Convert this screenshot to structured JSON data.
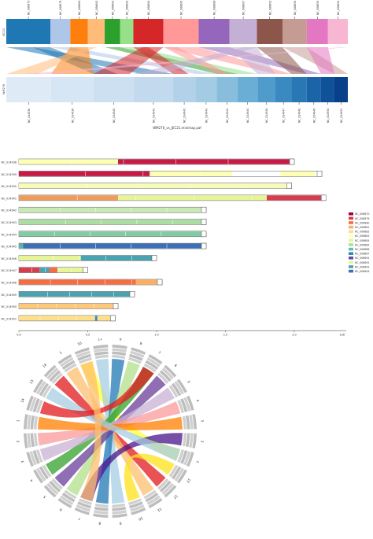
{
  "synteny": {
    "top_label": "JEC21",
    "bottom_label": "WM276",
    "caption": "WM276_vs_JEC21.minimap.paf",
    "top_contigs": [
      {
        "name": "NC_006670",
        "len": 1.0,
        "color": "#1f77b4"
      },
      {
        "name": "NC_006679",
        "len": 0.45,
        "color": "#aec7e8"
      },
      {
        "name": "NC_006680",
        "len": 0.4,
        "color": "#ff7f0e"
      },
      {
        "name": "NC_006681",
        "len": 0.38,
        "color": "#ffbb78"
      },
      {
        "name": "NC_006682",
        "len": 0.35,
        "color": "#2ca02c"
      },
      {
        "name": "NC_006683",
        "len": 0.3,
        "color": "#98df8a"
      },
      {
        "name": "NC_006684",
        "len": 0.68,
        "color": "#d62728"
      },
      {
        "name": "NC_006685",
        "len": 0.8,
        "color": "#ff9896"
      },
      {
        "name": "NC_006686",
        "len": 0.7,
        "color": "#9467bd"
      },
      {
        "name": "NC_006687",
        "len": 0.62,
        "color": "#c5b0d5"
      },
      {
        "name": "NC_006691",
        "len": 0.58,
        "color": "#8c564b"
      },
      {
        "name": "NC_006692",
        "len": 0.55,
        "color": "#c49c94"
      },
      {
        "name": "NC_006693",
        "len": 0.48,
        "color": "#e377c2"
      },
      {
        "name": "NC_006694",
        "len": 0.45,
        "color": "#f7b6d2"
      }
    ],
    "bottom_contigs": [
      {
        "name": "NC_014938",
        "len": 1.0,
        "color": "#deebf7"
      },
      {
        "name": "NC_014939",
        "len": 0.95,
        "color": "#d6e6f4"
      },
      {
        "name": "NC_014940",
        "len": 0.9,
        "color": "#cde0f1"
      },
      {
        "name": "NC_014941",
        "len": 0.88,
        "color": "#c2d9ee"
      },
      {
        "name": "NC_014942",
        "len": 0.5,
        "color": "#b3d2e9"
      },
      {
        "name": "NC_014943",
        "len": 0.48,
        "color": "#a3cbe4"
      },
      {
        "name": "NC_014944",
        "len": 0.46,
        "color": "#88bedc"
      },
      {
        "name": "NC_014945",
        "len": 0.45,
        "color": "#6aaed6"
      },
      {
        "name": "NC_014946",
        "len": 0.4,
        "color": "#4f9bcb"
      },
      {
        "name": "NC_014947",
        "len": 0.36,
        "color": "#3a89c1"
      },
      {
        "name": "NC_014948",
        "len": 0.34,
        "color": "#2a77b6"
      },
      {
        "name": "NC_014949",
        "len": 0.32,
        "color": "#1c64a8"
      },
      {
        "name": "NC_014950",
        "len": 0.3,
        "color": "#0f5299"
      },
      {
        "name": "NC_014951",
        "len": 0.3,
        "color": "#08408a"
      }
    ]
  },
  "painting": {
    "axis_unit": "1e6",
    "x_ticks": [
      "0.0",
      "0.5",
      "1.0",
      "1.5",
      "2.0"
    ],
    "x_max": 2.3,
    "rows": [
      {
        "name": "NC_014938",
        "len": 2.0,
        "segments": [
          [
            0,
            0.72,
            "#ffffb3"
          ],
          [
            0.72,
            2.0,
            "#c51b45"
          ]
        ]
      },
      {
        "name": "NC_014939",
        "len": 2.2,
        "segments": [
          [
            0,
            0.95,
            "#c51b45"
          ],
          [
            0.95,
            1.55,
            "#ffffb3"
          ],
          [
            1.55,
            1.9,
            "#ffffff"
          ],
          [
            1.9,
            2.15,
            "#ffffb3"
          ]
        ]
      },
      {
        "name": "NC_014940",
        "len": 1.98,
        "segments": [
          [
            0,
            1.95,
            "#f6fbb9"
          ]
        ]
      },
      {
        "name": "NC_014941",
        "len": 2.23,
        "segments": [
          [
            0,
            0.72,
            "#ef9c5a"
          ],
          [
            0.72,
            1.8,
            "#e6f598"
          ],
          [
            1.8,
            2.2,
            "#d53e4f"
          ]
        ]
      },
      {
        "name": "NC_014942",
        "len": 1.36,
        "segments": [
          [
            0,
            1.33,
            "#c7e9b4"
          ]
        ]
      },
      {
        "name": "NC_014943",
        "len": 1.36,
        "segments": [
          [
            0,
            1.33,
            "#abdda4"
          ]
        ]
      },
      {
        "name": "NC_014944",
        "len": 1.36,
        "segments": [
          [
            0,
            1.33,
            "#82cba5"
          ]
        ]
      },
      {
        "name": "NC_014945",
        "len": 1.36,
        "segments": [
          [
            0,
            0.03,
            "#5db3a9"
          ],
          [
            0.03,
            1.33,
            "#3b6fb6"
          ]
        ]
      },
      {
        "name": "NC_014946",
        "len": 1.0,
        "segments": [
          [
            0,
            0.45,
            "#e6f598"
          ],
          [
            0.45,
            0.97,
            "#4aa3b0"
          ]
        ]
      },
      {
        "name": "NC_014947",
        "len": 0.5,
        "segments": [
          [
            0,
            0.15,
            "#d53e4f"
          ],
          [
            0.15,
            0.22,
            "#4aa3b0"
          ],
          [
            0.22,
            0.28,
            "#f46d43"
          ],
          [
            0.28,
            0.48,
            "#e6f598"
          ]
        ]
      },
      {
        "name": "NC_014948",
        "len": 1.04,
        "segments": [
          [
            0,
            0.85,
            "#f46d43"
          ],
          [
            0.85,
            1.02,
            "#fdae61"
          ]
        ]
      },
      {
        "name": "NC_014949",
        "len": 0.84,
        "segments": [
          [
            0,
            0.82,
            "#4aa3b0"
          ]
        ]
      },
      {
        "name": "NC_014950",
        "len": 0.72,
        "segments": [
          [
            0,
            0.7,
            "#fdc879"
          ]
        ]
      },
      {
        "name": "NC_014951",
        "len": 0.7,
        "segments": [
          [
            0,
            0.55,
            "#fee08b"
          ],
          [
            0.55,
            0.57,
            "#3288bd"
          ],
          [
            0.57,
            0.68,
            "#fee08b"
          ]
        ]
      }
    ],
    "legend": [
      {
        "label": "NC_006670",
        "color": "#9e0142"
      },
      {
        "label": "NC_006679",
        "color": "#d53e4f"
      },
      {
        "label": "NC_006680",
        "color": "#f46d43"
      },
      {
        "label": "NC_006681",
        "color": "#fdae61"
      },
      {
        "label": "NC_006682",
        "color": "#fee08b"
      },
      {
        "label": "NC_006683",
        "color": "#ffffbf"
      },
      {
        "label": "NC_006684",
        "color": "#e6f598"
      },
      {
        "label": "NC_006685",
        "color": "#abdda4"
      },
      {
        "label": "NC_006686",
        "color": "#66c2a5"
      },
      {
        "label": "NC_006687",
        "color": "#3288bd"
      },
      {
        "label": "NC_006691",
        "color": "#5e4fa2"
      },
      {
        "label": "NC_006692",
        "color": "#e6f598"
      },
      {
        "label": "NC_006693",
        "color": "#4aa3b0"
      },
      {
        "label": "NC_006694",
        "color": "#3b6fb6"
      }
    ]
  },
  "circos": {
    "outer_labels": [
      "14",
      "1",
      "10",
      "11",
      "8",
      "9",
      "7",
      "6",
      "5",
      "4",
      "3",
      "2",
      "1",
      "13",
      "12",
      "11",
      "10",
      "9",
      "8",
      "7",
      "6",
      "5",
      "4",
      "3",
      "2",
      "1",
      "14",
      "13"
    ],
    "link_colors": [
      "#e31a1c",
      "#fdbf6f",
      "#ffff33",
      "#a6cee3",
      "#1f78b4",
      "#b2df8a",
      "#33a02c",
      "#6a3d9a",
      "#cab2d6",
      "#fb9a99",
      "#ff7f00",
      "#4a148c",
      "#a6cee3",
      "#ffe119"
    ]
  }
}
